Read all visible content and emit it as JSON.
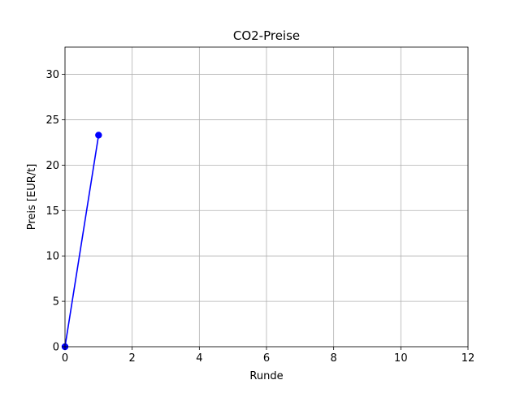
{
  "chart_data": {
    "type": "line",
    "title": "CO2-Preise",
    "xlabel": "Runde",
    "ylabel": "Preis [EUR/t]",
    "xlim": [
      0,
      12
    ],
    "ylim": [
      0,
      33
    ],
    "x_ticks": [
      0,
      2,
      4,
      6,
      8,
      10,
      12
    ],
    "y_ticks": [
      0,
      5,
      10,
      15,
      20,
      25,
      30
    ],
    "grid": true,
    "series": [
      {
        "x": [
          0,
          1
        ],
        "values": [
          0,
          23.3
        ],
        "color": "#0000ff",
        "marker": "circle"
      }
    ]
  }
}
